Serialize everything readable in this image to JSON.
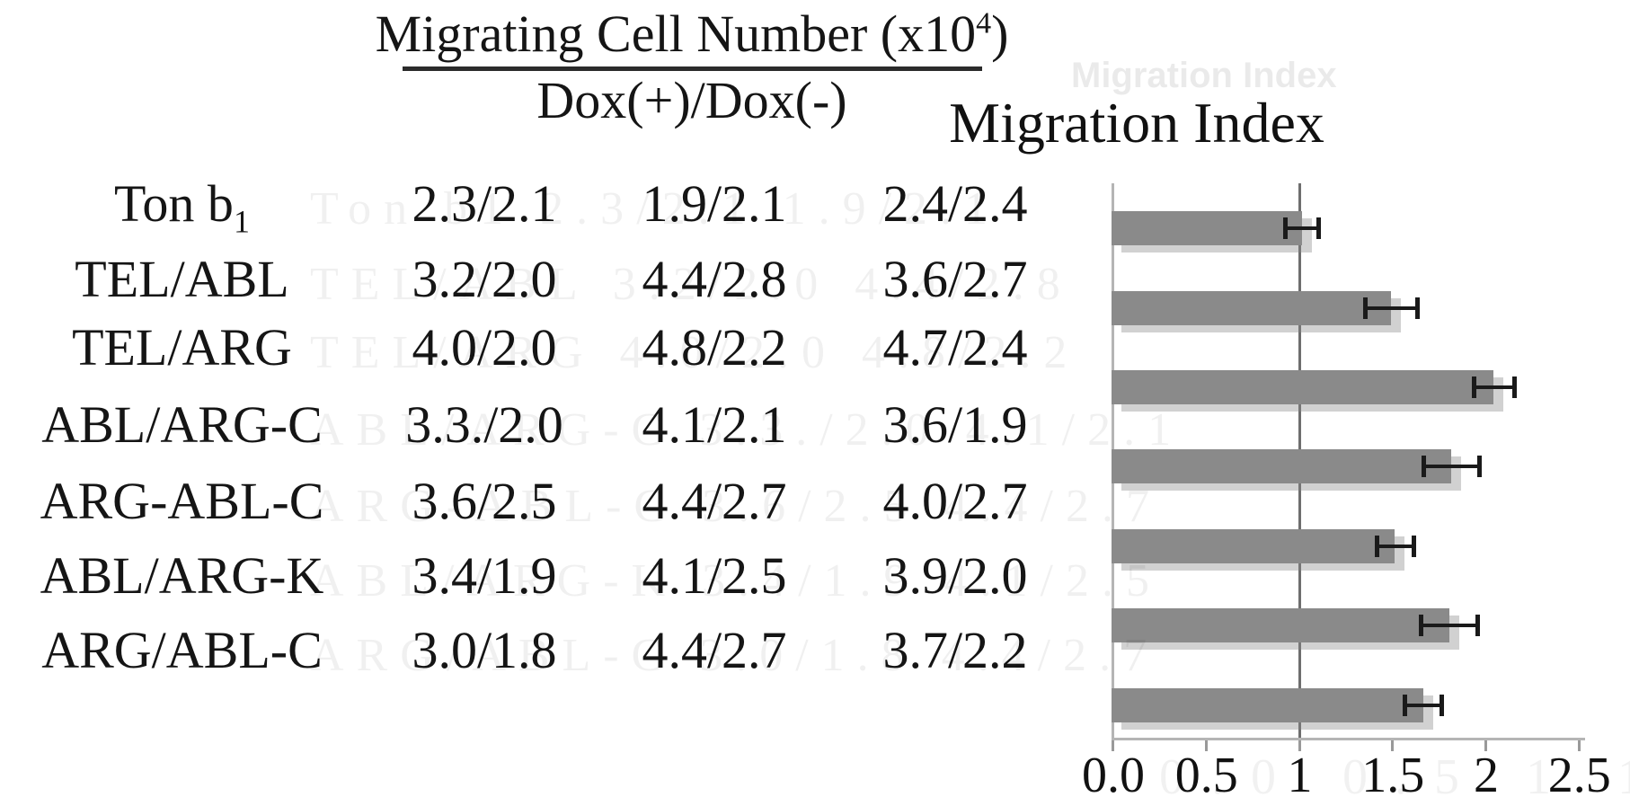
{
  "header": {
    "numerator": "Migrating Cell Number (x10",
    "numerator_sup": "4",
    "numerator_close": ")",
    "denominator": "Dox(+)/Dox(-)"
  },
  "chart": {
    "title": "Migration Index",
    "ghost_title": "Migration Index"
  },
  "table": {
    "rows": [
      {
        "label": "Ton b",
        "label_sub": "1",
        "c1": "2.3/2.1",
        "c2": "1.9/2.1",
        "c3": "2.4/2.4"
      },
      {
        "label": "TEL/ABL",
        "label_sub": "",
        "c1": "3.2/2.0",
        "c2": "4.4/2.8",
        "c3": "3.6/2.7"
      },
      {
        "label": "TEL/ARG",
        "label_sub": "",
        "c1": "4.0/2.0",
        "c2": "4.8/2.2",
        "c3": "4.7/2.4"
      },
      {
        "label": "ABL/ARG-C",
        "label_sub": "",
        "c1": "3.3./2.0",
        "c2": "4.1/2.1",
        "c3": "3.6/1.9"
      },
      {
        "label": "ARG-ABL-C",
        "label_sub": "",
        "c1": "3.6/2.5",
        "c2": "4.4/2.7",
        "c3": "4.0/2.7"
      },
      {
        "label": "ABL/ARG-K",
        "label_sub": "",
        "c1": "3.4/1.9",
        "c2": "4.1/2.5",
        "c3": "3.9/2.0"
      },
      {
        "label": "ARG/ABL-C",
        "label_sub": "",
        "c1": "3.0/1.8",
        "c2": "4.4/2.7",
        "c3": "3.7/2.2"
      }
    ]
  },
  "chart_data": {
    "type": "bar",
    "orientation": "horizontal",
    "title": "Migration Index",
    "categories": [
      "Ton b1",
      "TEL/ABL",
      "TEL/ARG",
      "ABL/ARG-C",
      "ARG-ABL-C",
      "ABL/ARG-K",
      "ARG/ABL-C"
    ],
    "values": [
      1.02,
      1.5,
      2.05,
      1.82,
      1.52,
      1.81,
      1.67
    ],
    "errors": [
      0.09,
      0.14,
      0.11,
      0.15,
      0.1,
      0.15,
      0.1
    ],
    "xlim": [
      0.0,
      2.5
    ],
    "xticks": [
      0.0,
      0.5,
      1.0,
      1.5,
      2.0,
      2.5
    ],
    "xtick_labels": [
      "0.0",
      "0.5",
      "1",
      "1.5",
      "2",
      "2.5"
    ],
    "reference_gridline_x": 1.0,
    "grid": "single vertical line at x=1",
    "legend": "none",
    "bar_color": "#8a8a8a",
    "error_color": "#1a1a1a",
    "axis_color": "#b5b5b5",
    "gridline_color": "#6e6e6e"
  },
  "ghost_xlabels_text": "0.0 0.5 1 1.5 2 2.5"
}
